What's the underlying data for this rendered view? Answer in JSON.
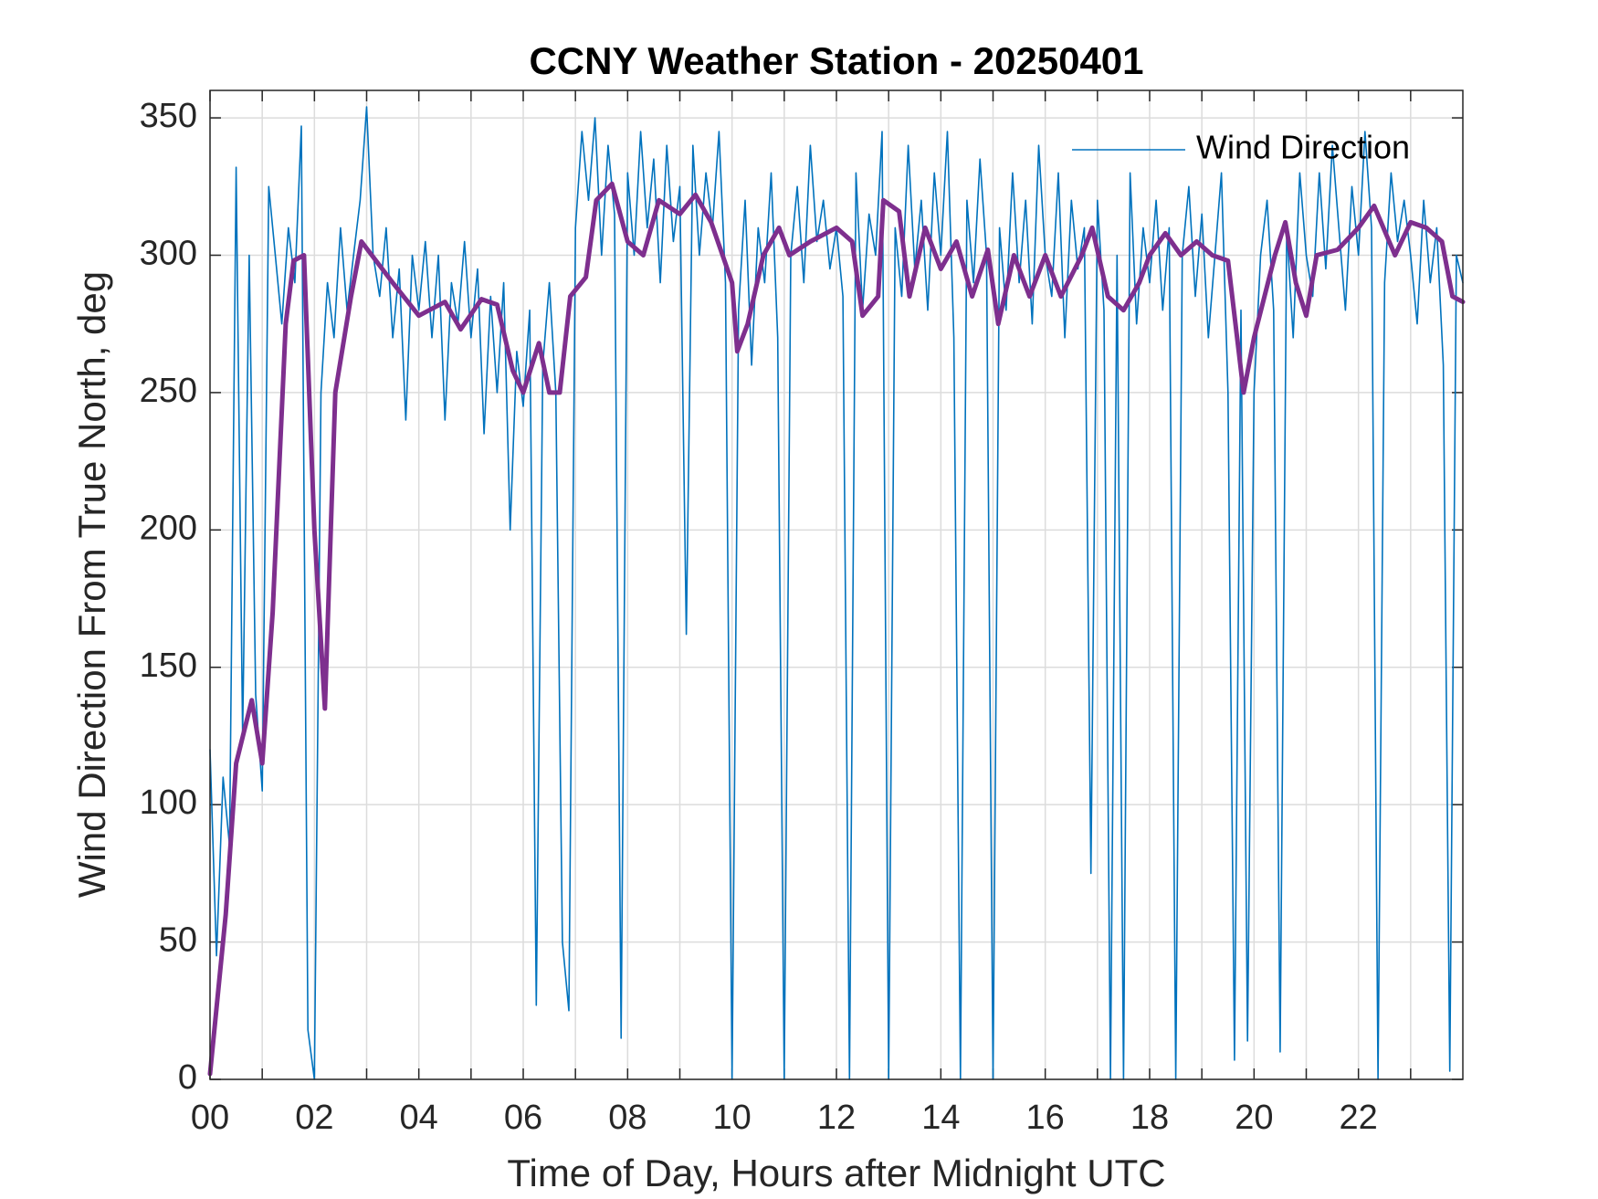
{
  "chart_data": {
    "type": "line",
    "title": "CCNY Weather Station - 20250401",
    "xlabel": "Time of Day, Hours after Midnight UTC",
    "ylabel": "Wind Direction From True North, deg",
    "xlim": [
      0,
      24
    ],
    "ylim": [
      0,
      360
    ],
    "xticks": [
      {
        "value": 0,
        "label": "00"
      },
      {
        "value": 2,
        "label": "02"
      },
      {
        "value": 4,
        "label": "04"
      },
      {
        "value": 6,
        "label": "06"
      },
      {
        "value": 8,
        "label": "08"
      },
      10,
      12,
      14,
      16,
      18,
      20,
      22
    ],
    "xminorticks": [
      1,
      3,
      5,
      7,
      9,
      11,
      13,
      15,
      17,
      19,
      21,
      23
    ],
    "yticks": [
      0,
      50,
      100,
      150,
      200,
      250,
      300,
      350
    ],
    "grid": true,
    "legend": "upper right",
    "series": [
      {
        "name": "Wind Direction",
        "color": "#0072bd",
        "x": [
          0,
          0.125,
          0.25,
          0.375,
          0.5,
          0.625,
          0.75,
          0.875,
          1,
          1.125,
          1.25,
          1.375,
          1.5,
          1.625,
          1.75,
          1.875,
          2,
          2.125,
          2.25,
          2.375,
          2.5,
          2.625,
          2.75,
          2.875,
          3,
          3.125,
          3.25,
          3.375,
          3.5,
          3.625,
          3.75,
          3.875,
          4,
          4.125,
          4.25,
          4.375,
          4.5,
          4.625,
          4.75,
          4.875,
          5,
          5.125,
          5.25,
          5.375,
          5.5,
          5.625,
          5.75,
          5.875,
          6,
          6.125,
          6.25,
          6.375,
          6.5,
          6.625,
          6.75,
          6.875,
          7,
          7.125,
          7.25,
          7.375,
          7.5,
          7.625,
          7.75,
          7.875,
          8,
          8.125,
          8.25,
          8.375,
          8.5,
          8.625,
          8.75,
          8.875,
          9,
          9.125,
          9.25,
          9.375,
          9.5,
          9.625,
          9.75,
          9.875,
          10,
          10.125,
          10.25,
          10.375,
          10.5,
          10.625,
          10.75,
          10.875,
          11,
          11.125,
          11.25,
          11.375,
          11.5,
          11.625,
          11.75,
          11.875,
          12,
          12.125,
          12.25,
          12.375,
          12.5,
          12.625,
          12.75,
          12.875,
          13,
          13.125,
          13.25,
          13.375,
          13.5,
          13.625,
          13.75,
          13.875,
          14,
          14.125,
          14.25,
          14.375,
          14.5,
          14.625,
          14.75,
          14.875,
          15,
          15.125,
          15.25,
          15.375,
          15.5,
          15.625,
          15.75,
          15.875,
          16,
          16.125,
          16.25,
          16.375,
          16.5,
          16.625,
          16.75,
          16.875,
          17,
          17.125,
          17.25,
          17.375,
          17.5,
          17.625,
          17.75,
          17.875,
          18,
          18.125,
          18.25,
          18.375,
          18.5,
          18.625,
          18.75,
          18.875,
          19,
          19.125,
          19.25,
          19.375,
          19.5,
          19.625,
          19.75,
          19.875,
          20,
          20.125,
          20.25,
          20.375,
          20.5,
          20.625,
          20.75,
          20.875,
          21,
          21.125,
          21.25,
          21.375,
          21.5,
          21.625,
          21.75,
          21.875,
          22,
          22.125,
          22.25,
          22.375,
          22.5,
          22.625,
          22.75,
          22.875,
          23,
          23.125,
          23.25,
          23.375,
          23.5,
          23.625,
          23.75,
          23.875,
          24
        ],
        "values": [
          120,
          45,
          110,
          85,
          332,
          125,
          300,
          140,
          105,
          325,
          300,
          275,
          310,
          290,
          347,
          18,
          0,
          250,
          290,
          270,
          310,
          280,
          300,
          320,
          354,
          300,
          285,
          310,
          270,
          295,
          240,
          300,
          280,
          305,
          270,
          300,
          240,
          290,
          275,
          305,
          270,
          295,
          235,
          285,
          250,
          290,
          200,
          265,
          245,
          280,
          27,
          260,
          290,
          250,
          50,
          25,
          310,
          345,
          320,
          350,
          300,
          340,
          315,
          15,
          330,
          300,
          345,
          310,
          335,
          290,
          340,
          305,
          325,
          162,
          340,
          300,
          330,
          310,
          345,
          290,
          0,
          280,
          320,
          260,
          310,
          290,
          330,
          270,
          0,
          300,
          325,
          290,
          340,
          305,
          320,
          295,
          310,
          285,
          0,
          330,
          280,
          315,
          300,
          345,
          0,
          310,
          285,
          340,
          295,
          320,
          280,
          330,
          300,
          345,
          270,
          0,
          320,
          290,
          335,
          300,
          0,
          310,
          280,
          330,
          290,
          320,
          275,
          340,
          300,
          285,
          330,
          270,
          320,
          295,
          310,
          75,
          320,
          280,
          0,
          300,
          0,
          330,
          275,
          310,
          290,
          320,
          280,
          310,
          0,
          300,
          325,
          285,
          315,
          270,
          300,
          330,
          250,
          7,
          280,
          14,
          250,
          300,
          320,
          280,
          10,
          310,
          270,
          330,
          300,
          285,
          330,
          295,
          340,
          310,
          280,
          325,
          300,
          345,
          310,
          0,
          290,
          330,
          305,
          320,
          300,
          275,
          320,
          290,
          310,
          260,
          3,
          300,
          290
        ]
      },
      {
        "color": "#7e2f8e",
        "x": [
          0,
          0.3,
          0.5,
          0.8,
          1,
          1.2,
          1.45,
          1.6,
          1.8,
          2,
          2.2,
          2.4,
          2.7,
          2.9,
          3.5,
          4,
          4.5,
          4.8,
          5.2,
          5.5,
          5.8,
          6,
          6.3,
          6.5,
          6.7,
          6.9,
          7.2,
          7.4,
          7.7,
          8,
          8.3,
          8.6,
          9,
          9.3,
          9.6,
          10,
          10.1,
          10.3,
          10.6,
          10.9,
          11.1,
          11.5,
          12,
          12.3,
          12.5,
          12.8,
          12.9,
          13.2,
          13.4,
          13.7,
          14,
          14.3,
          14.6,
          14.9,
          15.1,
          15.4,
          15.7,
          16,
          16.3,
          16.7,
          16.9,
          17.2,
          17.5,
          17.8,
          18,
          18.3,
          18.6,
          18.9,
          19.2,
          19.5,
          19.8,
          20,
          20.4,
          20.6,
          20.8,
          21,
          21.2,
          21.6,
          22,
          22.3,
          22.7,
          23,
          23.3,
          23.6,
          23.8,
          24
        ],
        "values": [
          2,
          60,
          115,
          138,
          115,
          170,
          275,
          298,
          300,
          200,
          135,
          250,
          285,
          305,
          290,
          278,
          283,
          273,
          284,
          282,
          258,
          250,
          268,
          250,
          250,
          285,
          292,
          320,
          326,
          305,
          300,
          320,
          315,
          322,
          312,
          290,
          265,
          275,
          300,
          310,
          300,
          305,
          310,
          305,
          278,
          285,
          320,
          316,
          285,
          310,
          295,
          305,
          285,
          302,
          275,
          300,
          285,
          300,
          285,
          300,
          310,
          285,
          280,
          290,
          300,
          308,
          300,
          305,
          300,
          298,
          250,
          270,
          300,
          312,
          290,
          278,
          300,
          302,
          310,
          318,
          300,
          312,
          310,
          305,
          285,
          283
        ]
      }
    ]
  }
}
